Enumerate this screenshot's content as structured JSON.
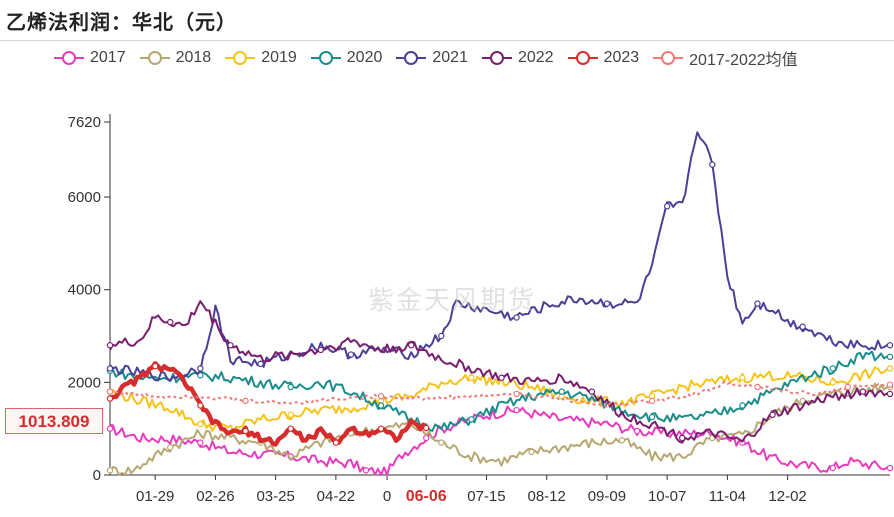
{
  "page": {
    "title": "乙烯法利润：华北（元）",
    "watermark": "紫金天风期货",
    "current_value_label": "1013.809"
  },
  "chart_data": {
    "type": "line",
    "title": "乙烯法利润：华北（元）",
    "xlabel": "",
    "ylabel": "",
    "ylim": [
      0,
      7620
    ],
    "y_ticks": [
      0,
      2000,
      4000,
      6000,
      7620
    ],
    "x_ticks": [
      "01-29",
      "02-26",
      "03-25",
      "04-22",
      "0",
      "06-06",
      "07-15",
      "08-12",
      "09-09",
      "10-07",
      "11-04",
      "12-02"
    ],
    "x_tick_index": [
      15,
      35,
      55,
      75,
      92,
      105,
      125,
      145,
      165,
      185,
      205,
      225
    ],
    "highlight_tick": "06-06",
    "current_value": 1013.809,
    "legend_position": "top",
    "grid": false,
    "n_points": 260,
    "series": [
      {
        "name": "2017",
        "color": "#e83cbf",
        "points": [
          [
            0,
            1000
          ],
          [
            10,
            800
          ],
          [
            20,
            780
          ],
          [
            30,
            700
          ],
          [
            40,
            500
          ],
          [
            50,
            450
          ],
          [
            60,
            400
          ],
          [
            70,
            300
          ],
          [
            80,
            250
          ],
          [
            85,
            100
          ],
          [
            92,
            50
          ],
          [
            97,
            450
          ],
          [
            105,
            800
          ],
          [
            110,
            1000
          ],
          [
            125,
            1300
          ],
          [
            135,
            1400
          ],
          [
            150,
            1200
          ],
          [
            165,
            1100
          ],
          [
            175,
            950
          ],
          [
            185,
            900
          ],
          [
            200,
            900
          ],
          [
            210,
            700
          ],
          [
            220,
            350
          ],
          [
            230,
            200
          ],
          [
            240,
            150
          ],
          [
            245,
            300
          ],
          [
            250,
            250
          ],
          [
            259,
            150
          ]
        ]
      },
      {
        "name": "2018",
        "color": "#b7a770",
        "points": [
          [
            0,
            100
          ],
          [
            8,
            100
          ],
          [
            12,
            300
          ],
          [
            20,
            600
          ],
          [
            30,
            900
          ],
          [
            40,
            800
          ],
          [
            50,
            700
          ],
          [
            60,
            400
          ],
          [
            70,
            700
          ],
          [
            80,
            900
          ],
          [
            90,
            1000
          ],
          [
            100,
            1100
          ],
          [
            110,
            700
          ],
          [
            120,
            400
          ],
          [
            130,
            300
          ],
          [
            140,
            500
          ],
          [
            150,
            600
          ],
          [
            160,
            700
          ],
          [
            170,
            750
          ],
          [
            180,
            400
          ],
          [
            190,
            400
          ],
          [
            200,
            800
          ],
          [
            210,
            850
          ],
          [
            220,
            1300
          ],
          [
            230,
            1600
          ],
          [
            240,
            1750
          ],
          [
            250,
            1850
          ],
          [
            259,
            1900
          ]
        ]
      },
      {
        "name": "2019",
        "color": "#f5c31a",
        "points": [
          [
            0,
            1800
          ],
          [
            10,
            1600
          ],
          [
            20,
            1450
          ],
          [
            30,
            1100
          ],
          [
            40,
            1000
          ],
          [
            50,
            1200
          ],
          [
            60,
            1300
          ],
          [
            70,
            1400
          ],
          [
            80,
            1450
          ],
          [
            90,
            1600
          ],
          [
            100,
            1700
          ],
          [
            110,
            2000
          ],
          [
            120,
            2100
          ],
          [
            130,
            2000
          ],
          [
            140,
            1900
          ],
          [
            150,
            1700
          ],
          [
            160,
            1600
          ],
          [
            170,
            1550
          ],
          [
            180,
            1700
          ],
          [
            190,
            1900
          ],
          [
            200,
            2000
          ],
          [
            210,
            2100
          ],
          [
            220,
            2150
          ],
          [
            230,
            2100
          ],
          [
            240,
            2000
          ],
          [
            250,
            2150
          ],
          [
            259,
            2300
          ]
        ]
      },
      {
        "name": "2020",
        "color": "#1a8c8c",
        "points": [
          [
            0,
            2250
          ],
          [
            10,
            2100
          ],
          [
            20,
            2100
          ],
          [
            30,
            2150
          ],
          [
            40,
            2100
          ],
          [
            50,
            2000
          ],
          [
            60,
            1900
          ],
          [
            70,
            2000
          ],
          [
            80,
            1800
          ],
          [
            90,
            1500
          ],
          [
            100,
            1200
          ],
          [
            110,
            1000
          ],
          [
            120,
            1200
          ],
          [
            130,
            1500
          ],
          [
            140,
            1700
          ],
          [
            150,
            1800
          ],
          [
            160,
            1650
          ],
          [
            170,
            1400
          ],
          [
            180,
            1250
          ],
          [
            190,
            1200
          ],
          [
            200,
            1300
          ],
          [
            210,
            1500
          ],
          [
            220,
            1800
          ],
          [
            230,
            2100
          ],
          [
            240,
            2300
          ],
          [
            250,
            2600
          ],
          [
            259,
            2550
          ]
        ]
      },
      {
        "name": "2021",
        "color": "#4b3f96",
        "points": [
          [
            0,
            2300
          ],
          [
            10,
            2200
          ],
          [
            20,
            2100
          ],
          [
            30,
            2300
          ],
          [
            35,
            3600
          ],
          [
            40,
            2500
          ],
          [
            50,
            2400
          ],
          [
            60,
            2600
          ],
          [
            70,
            2800
          ],
          [
            80,
            2600
          ],
          [
            90,
            2700
          ],
          [
            100,
            2600
          ],
          [
            110,
            3000
          ],
          [
            115,
            3700
          ],
          [
            125,
            3550
          ],
          [
            135,
            3400
          ],
          [
            145,
            3650
          ],
          [
            155,
            3800
          ],
          [
            165,
            3700
          ],
          [
            175,
            3700
          ],
          [
            180,
            4500
          ],
          [
            185,
            5800
          ],
          [
            190,
            5800
          ],
          [
            195,
            7500
          ],
          [
            200,
            6700
          ],
          [
            205,
            4300
          ],
          [
            210,
            3300
          ],
          [
            215,
            3700
          ],
          [
            220,
            3600
          ],
          [
            225,
            3300
          ],
          [
            230,
            3200
          ],
          [
            240,
            2900
          ],
          [
            250,
            2800
          ],
          [
            259,
            2800
          ]
        ]
      },
      {
        "name": "2022",
        "color": "#7a1e6e",
        "points": [
          [
            0,
            2800
          ],
          [
            10,
            2900
          ],
          [
            15,
            3400
          ],
          [
            20,
            3300
          ],
          [
            25,
            3200
          ],
          [
            30,
            3750
          ],
          [
            40,
            2800
          ],
          [
            50,
            2500
          ],
          [
            60,
            2600
          ],
          [
            70,
            2700
          ],
          [
            80,
            2900
          ],
          [
            90,
            2700
          ],
          [
            100,
            2800
          ],
          [
            110,
            2500
          ],
          [
            120,
            2300
          ],
          [
            130,
            2100
          ],
          [
            140,
            2000
          ],
          [
            150,
            2100
          ],
          [
            160,
            1800
          ],
          [
            170,
            1300
          ],
          [
            180,
            1100
          ],
          [
            190,
            800
          ],
          [
            200,
            900
          ],
          [
            210,
            700
          ],
          [
            220,
            1300
          ],
          [
            230,
            1500
          ],
          [
            240,
            1700
          ],
          [
            250,
            1800
          ],
          [
            259,
            1750
          ]
        ]
      },
      {
        "name": "2023",
        "color": "#d62c2c",
        "bold": true,
        "points": [
          [
            0,
            1650
          ],
          [
            5,
            1900
          ],
          [
            10,
            2100
          ],
          [
            15,
            2350
          ],
          [
            20,
            2300
          ],
          [
            25,
            2000
          ],
          [
            30,
            1500
          ],
          [
            35,
            1100
          ],
          [
            40,
            900
          ],
          [
            45,
            950
          ],
          [
            50,
            800
          ],
          [
            55,
            700
          ],
          [
            60,
            1000
          ],
          [
            65,
            750
          ],
          [
            70,
            950
          ],
          [
            75,
            700
          ],
          [
            80,
            1000
          ],
          [
            85,
            900
          ],
          [
            90,
            1000
          ],
          [
            95,
            800
          ],
          [
            100,
            1100
          ],
          [
            105,
            1013.809
          ]
        ]
      },
      {
        "name": "2017-2022均值",
        "color": "#f07a7a",
        "dashed": true,
        "points": [
          [
            0,
            1800
          ],
          [
            15,
            1700
          ],
          [
            30,
            1700
          ],
          [
            45,
            1600
          ],
          [
            60,
            1550
          ],
          [
            75,
            1650
          ],
          [
            90,
            1700
          ],
          [
            105,
            1650
          ],
          [
            120,
            1700
          ],
          [
            135,
            1750
          ],
          [
            150,
            1650
          ],
          [
            165,
            1500
          ],
          [
            180,
            1600
          ],
          [
            195,
            1750
          ],
          [
            205,
            2000
          ],
          [
            215,
            1900
          ],
          [
            225,
            1800
          ],
          [
            235,
            1750
          ],
          [
            245,
            1900
          ],
          [
            259,
            1950
          ]
        ]
      }
    ]
  }
}
